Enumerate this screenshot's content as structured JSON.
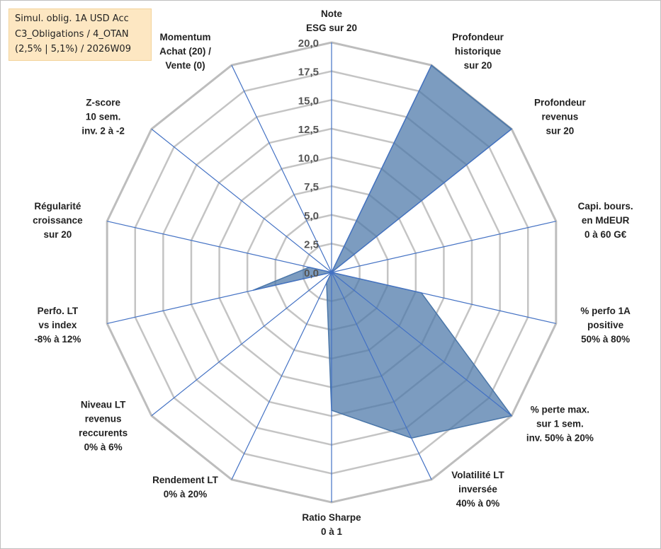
{
  "title_box": {
    "line1": "Simul. oblig. 1A USD Acc",
    "line2": "C3_Obligations / 4_OTAN",
    "line3": "(2,5% | 5,1%) / 2026W09"
  },
  "chart_data": {
    "type": "radar",
    "r_range": [
      0,
      20
    ],
    "tick_labels": [
      "0,0",
      "2,5",
      "5,0",
      "7,5",
      "10,0",
      "12,5",
      "15,0",
      "17,5",
      "20,0"
    ],
    "axes": [
      [
        "Note",
        "ESG sur 20"
      ],
      [
        "Profondeur",
        "historique",
        "sur 20"
      ],
      [
        "Profondeur",
        "revenus",
        "sur 20"
      ],
      [
        "Capi. bours.",
        "en MdEUR",
        "0 à 60 G€"
      ],
      [
        "% perfo 1A",
        "positive",
        "50% à 80%"
      ],
      [
        "% perte max.",
        "sur 1 sem.",
        "inv. 50% à 20%"
      ],
      [
        "Volatilité LT",
        "inversée",
        "40% à 0%"
      ],
      [
        "Ratio Sharpe",
        "0 à 1"
      ],
      [
        "Rendement LT",
        "0% à 20%"
      ],
      [
        "Niveau LT",
        "revenus",
        "reccurents",
        "0% à 6%"
      ],
      [
        "Perfo. LT",
        "vs index",
        "-8% à 12%"
      ],
      [
        "Régularité",
        "croissance",
        "sur 20"
      ],
      [
        "Z-score",
        "10 sem.",
        "inv. 2 à -2"
      ],
      [
        "Momentum",
        "Achat (20) /",
        "Vente (0)"
      ]
    ],
    "series": [
      {
        "values": [
          0,
          20,
          20,
          0,
          8,
          20,
          16,
          12,
          1,
          0,
          7,
          2,
          0,
          0
        ]
      }
    ],
    "grid": true,
    "colors": {
      "fill": "#4a76a8",
      "spoke": "#4472c4",
      "grid": "#c4c4c4",
      "outer": "#bdbdbd"
    }
  }
}
